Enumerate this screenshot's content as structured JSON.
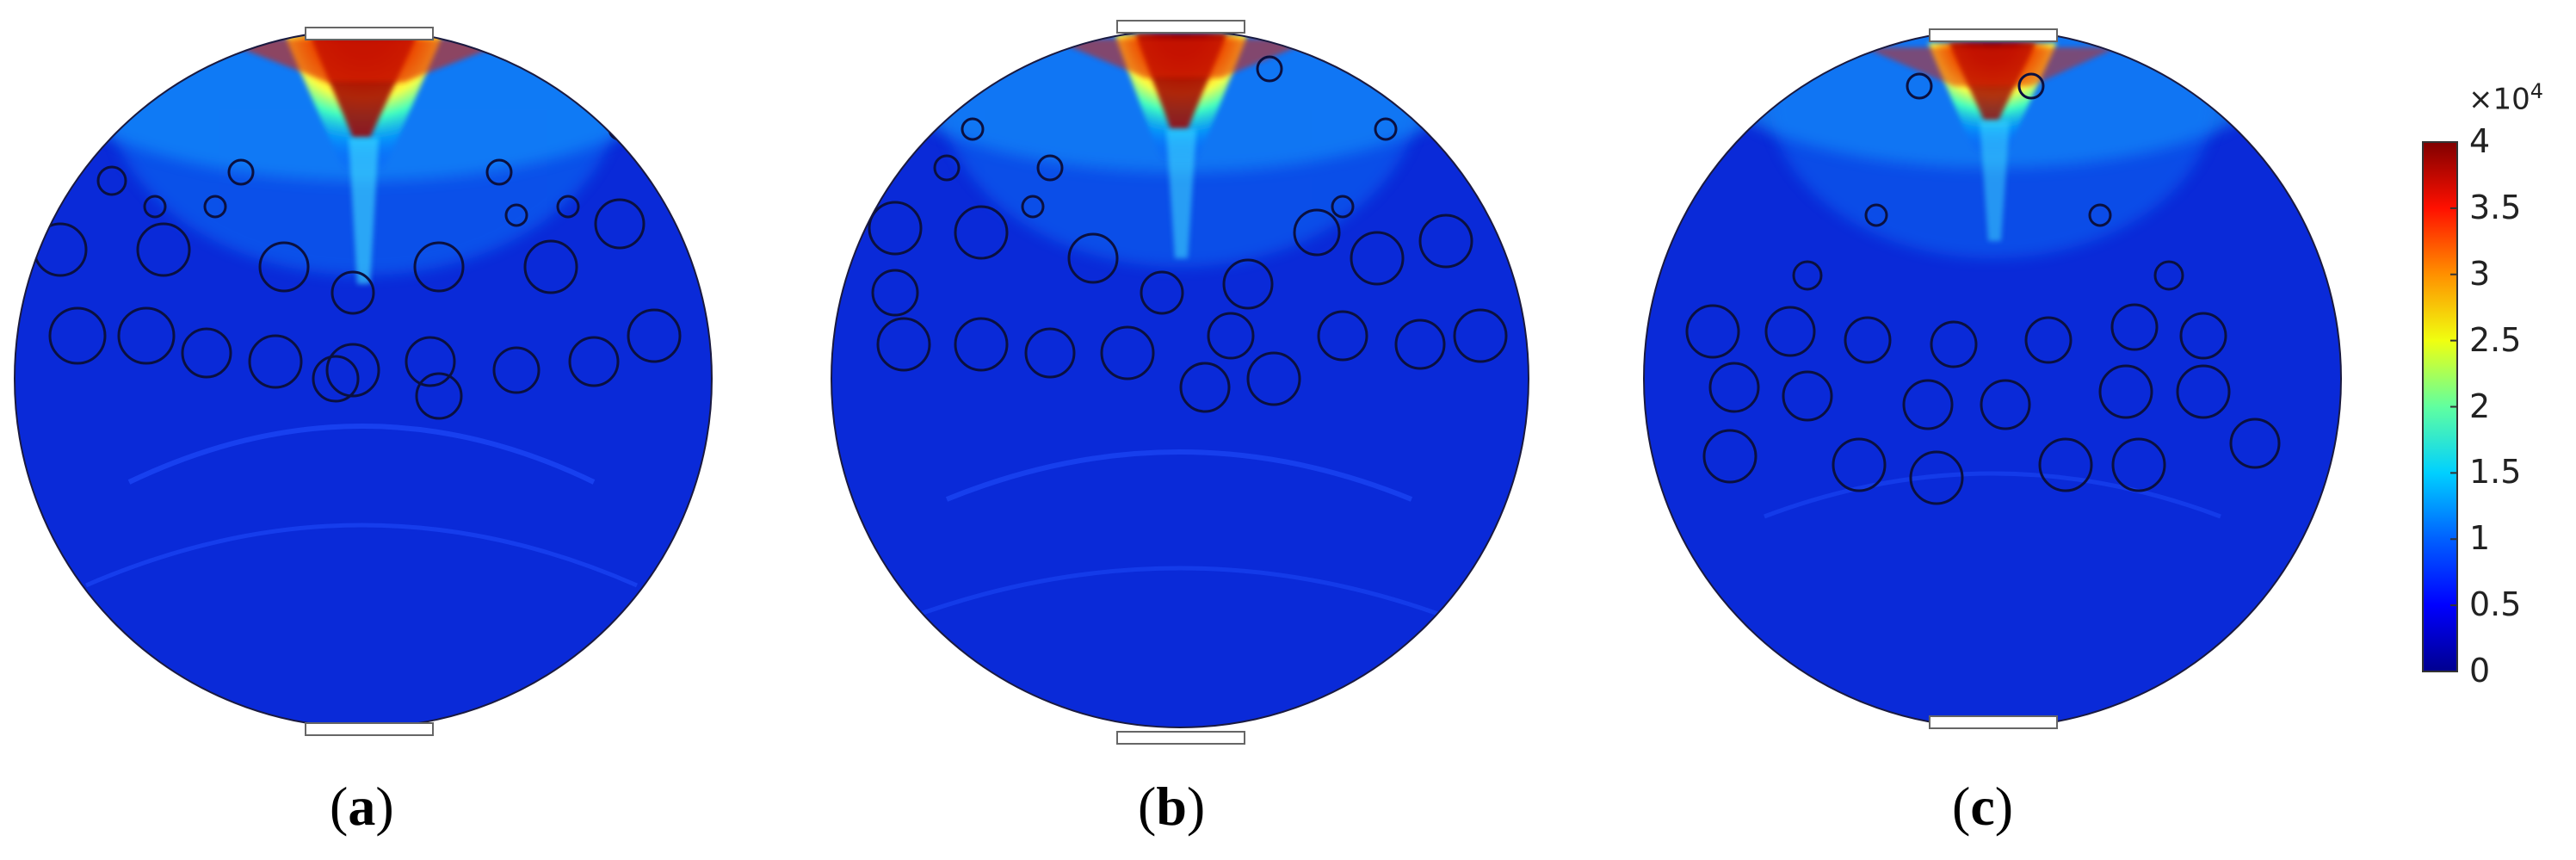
{
  "panels": [
    {
      "id": "a",
      "label": "a",
      "center_x": 0.15,
      "hot_spread": 1.0
    },
    {
      "id": "b",
      "label": "b",
      "center_x": 0.47,
      "hot_spread": 0.85
    },
    {
      "id": "c",
      "label": "c",
      "center_x": 0.79,
      "hot_spread": 0.7
    }
  ],
  "colorbar": {
    "multiplier_base": "×10",
    "multiplier_exp": "4",
    "ticks": [
      "4",
      "3.5",
      "3",
      "2.5",
      "2",
      "1.5",
      "1",
      "0.5",
      "0"
    ],
    "range": [
      0,
      4
    ],
    "colors": [
      "#00008f",
      "#0000ff",
      "#00a0ff",
      "#00ffff",
      "#70ff8f",
      "#ffff00",
      "#ff8000",
      "#ff0000",
      "#800000"
    ]
  }
}
